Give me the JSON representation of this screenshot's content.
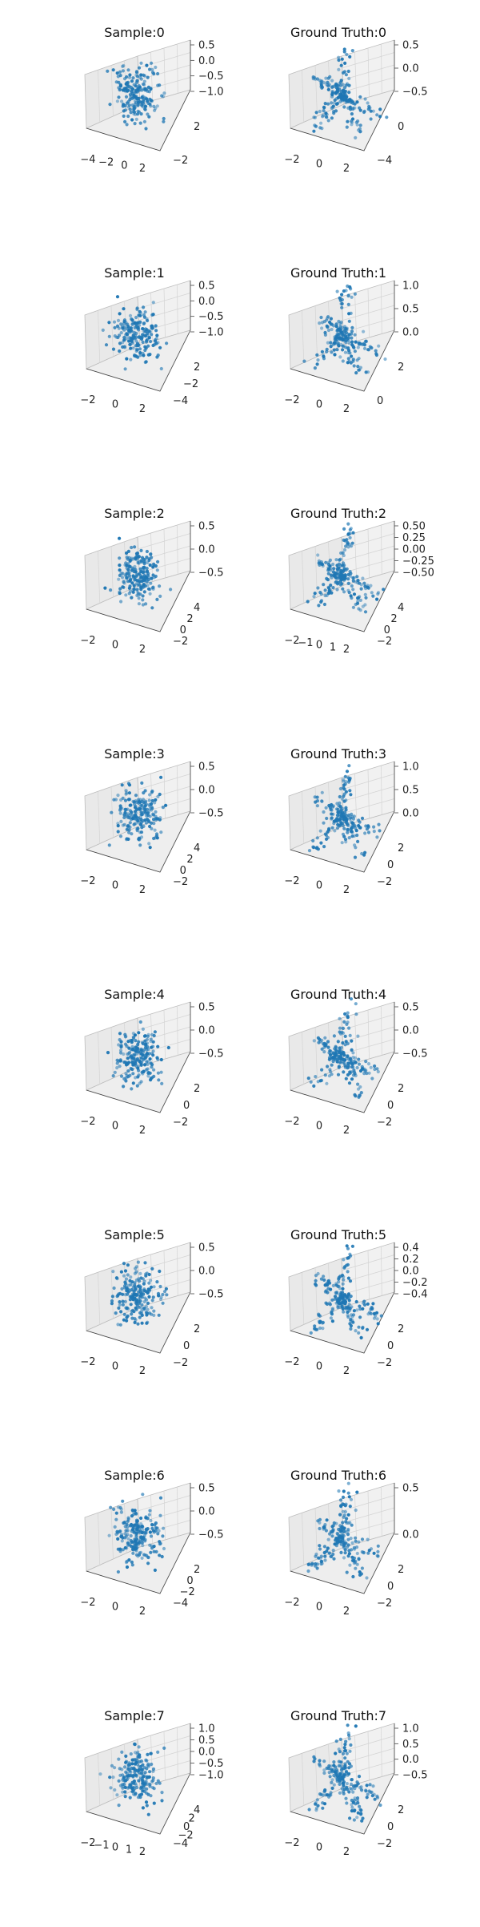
{
  "colors": {
    "points": "#1f77b4",
    "pane": "#f0f0f0",
    "grid": "#d4d4d4"
  },
  "chart_data": [
    {
      "type": "scatter",
      "title": "Sample:0",
      "col": 0,
      "row": 0,
      "n": 200,
      "seed": 11,
      "shape": "blob",
      "x_ticks": [
        "−4",
        "−2",
        "0",
        "2"
      ],
      "y_ticks": [
        "2",
        "−2"
      ],
      "z_ticks": [
        "0.5",
        "0.0",
        "−0.5",
        "−1.0"
      ]
    },
    {
      "type": "scatter",
      "title": "Ground Truth:0",
      "col": 1,
      "row": 0,
      "n": 200,
      "seed": 12,
      "shape": "skeleton",
      "x_ticks": [
        "−2",
        "0",
        "2"
      ],
      "y_ticks": [
        "0",
        "−4"
      ],
      "z_ticks": [
        "0.5",
        "0.0",
        "−0.5"
      ]
    },
    {
      "type": "scatter",
      "title": "Sample:1",
      "col": 0,
      "row": 1,
      "n": 200,
      "seed": 21,
      "shape": "blob",
      "x_ticks": [
        "−2",
        "0",
        "2"
      ],
      "y_ticks": [
        "2",
        "−2",
        "−4"
      ],
      "z_ticks": [
        "0.5",
        "0.0",
        "−0.5",
        "−1.0"
      ]
    },
    {
      "type": "scatter",
      "title": "Ground Truth:1",
      "col": 1,
      "row": 1,
      "n": 200,
      "seed": 22,
      "shape": "skeleton",
      "x_ticks": [
        "−2",
        "0",
        "2"
      ],
      "y_ticks": [
        "2",
        "0"
      ],
      "z_ticks": [
        "1.0",
        "0.5",
        "0.0"
      ]
    },
    {
      "type": "scatter",
      "title": "Sample:2",
      "col": 0,
      "row": 2,
      "n": 200,
      "seed": 31,
      "shape": "blob",
      "x_ticks": [
        "−2",
        "0",
        "2"
      ],
      "y_ticks": [
        "4",
        "2",
        "0",
        "−2"
      ],
      "z_ticks": [
        "0.5",
        "0.0",
        "−0.5"
      ]
    },
    {
      "type": "scatter",
      "title": "Ground Truth:2",
      "col": 1,
      "row": 2,
      "n": 200,
      "seed": 32,
      "shape": "skeleton",
      "x_ticks": [
        "−2",
        "−1",
        "0",
        "1",
        "2"
      ],
      "y_ticks": [
        "4",
        "2",
        "0",
        "−2"
      ],
      "z_ticks": [
        "0.50",
        "0.25",
        "0.00",
        "−0.25",
        "−0.50"
      ]
    },
    {
      "type": "scatter",
      "title": "Sample:3",
      "col": 0,
      "row": 3,
      "n": 200,
      "seed": 41,
      "shape": "blob",
      "x_ticks": [
        "−2",
        "0",
        "2"
      ],
      "y_ticks": [
        "4",
        "2",
        "0",
        "−2"
      ],
      "z_ticks": [
        "0.5",
        "0.0",
        "−0.5"
      ]
    },
    {
      "type": "scatter",
      "title": "Ground Truth:3",
      "col": 1,
      "row": 3,
      "n": 200,
      "seed": 42,
      "shape": "skeleton",
      "x_ticks": [
        "−2",
        "0",
        "2"
      ],
      "y_ticks": [
        "2",
        "0",
        "−2"
      ],
      "z_ticks": [
        "1.0",
        "0.5",
        "0.0"
      ]
    },
    {
      "type": "scatter",
      "title": "Sample:4",
      "col": 0,
      "row": 4,
      "n": 200,
      "seed": 51,
      "shape": "blob",
      "x_ticks": [
        "−2",
        "0",
        "2"
      ],
      "y_ticks": [
        "2",
        "0",
        "−2"
      ],
      "z_ticks": [
        "0.5",
        "0.0",
        "−0.5"
      ]
    },
    {
      "type": "scatter",
      "title": "Ground Truth:4",
      "col": 1,
      "row": 4,
      "n": 200,
      "seed": 52,
      "shape": "skeleton",
      "x_ticks": [
        "−2",
        "0",
        "2"
      ],
      "y_ticks": [
        "2",
        "0",
        "−2"
      ],
      "z_ticks": [
        "0.5",
        "0.0",
        "−0.5"
      ]
    },
    {
      "type": "scatter",
      "title": "Sample:5",
      "col": 0,
      "row": 5,
      "n": 200,
      "seed": 61,
      "shape": "blob",
      "x_ticks": [
        "−2",
        "0",
        "2"
      ],
      "y_ticks": [
        "2",
        "0",
        "−2"
      ],
      "z_ticks": [
        "0.5",
        "0.0",
        "−0.5"
      ]
    },
    {
      "type": "scatter",
      "title": "Ground Truth:5",
      "col": 1,
      "row": 5,
      "n": 200,
      "seed": 62,
      "shape": "skeleton",
      "x_ticks": [
        "−2",
        "0",
        "2"
      ],
      "y_ticks": [
        "2",
        "0",
        "−2"
      ],
      "z_ticks": [
        "0.4",
        "0.2",
        "0.0",
        "−0.2",
        "−0.4"
      ]
    },
    {
      "type": "scatter",
      "title": "Sample:6",
      "col": 0,
      "row": 6,
      "n": 200,
      "seed": 71,
      "shape": "blob",
      "x_ticks": [
        "−2",
        "0",
        "2"
      ],
      "y_ticks": [
        "2",
        "0",
        "−2",
        "−4"
      ],
      "z_ticks": [
        "0.5",
        "0.0",
        "−0.5"
      ]
    },
    {
      "type": "scatter",
      "title": "Ground Truth:6",
      "col": 1,
      "row": 6,
      "n": 200,
      "seed": 72,
      "shape": "skeleton",
      "x_ticks": [
        "−2",
        "0",
        "2"
      ],
      "y_ticks": [
        "2",
        "0",
        "−2"
      ],
      "z_ticks": [
        "0.5",
        "0.0"
      ]
    },
    {
      "type": "scatter",
      "title": "Sample:7",
      "col": 0,
      "row": 7,
      "n": 200,
      "seed": 81,
      "shape": "blob",
      "x_ticks": [
        "−2",
        "−1",
        "0",
        "1",
        "2"
      ],
      "y_ticks": [
        "4",
        "2",
        "0",
        "−2",
        "−4"
      ],
      "z_ticks": [
        "1.0",
        "0.5",
        "0.0",
        "−0.5",
        "−1.0"
      ]
    },
    {
      "type": "scatter",
      "title": "Ground Truth:7",
      "col": 1,
      "row": 7,
      "n": 200,
      "seed": 82,
      "shape": "skeleton",
      "x_ticks": [
        "−2",
        "0",
        "2"
      ],
      "y_ticks": [
        "2",
        "0",
        "−2"
      ],
      "z_ticks": [
        "1.0",
        "0.5",
        "0.0",
        "−0.5"
      ]
    }
  ]
}
